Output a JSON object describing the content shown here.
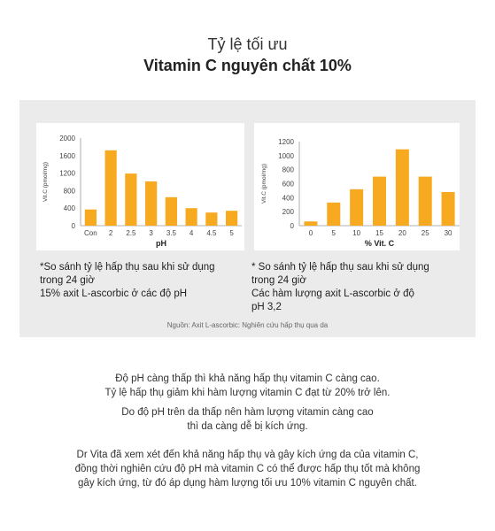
{
  "heading": {
    "line1": "Tỷ lệ tối ưu",
    "line2": "Vitamin C nguyên chất 10%"
  },
  "colors": {
    "bar": "#f7a91f",
    "panel": "#ebebeb"
  },
  "chart_data": [
    {
      "type": "bar",
      "categories": [
        "Con",
        "2",
        "2.5",
        "3",
        "3.5",
        "4",
        "4.5",
        "5"
      ],
      "values": [
        370,
        1720,
        1190,
        1010,
        650,
        400,
        300,
        340
      ],
      "xlabel": "pH",
      "ylabel": "Vit.C (pmol/mg)",
      "ylim": [
        0,
        2000
      ],
      "yticks": [
        "0",
        "400",
        "800",
        "1200",
        "1600",
        "2000"
      ],
      "grid": false
    },
    {
      "type": "bar",
      "categories": [
        "0",
        "5",
        "10",
        "15",
        "20",
        "25",
        "30"
      ],
      "values": [
        60,
        330,
        520,
        700,
        1090,
        700,
        480
      ],
      "xlabel": "% Vit. C",
      "ylabel": "Vit.C (pmol/mg)",
      "ylim": [
        0,
        1200
      ],
      "yticks": [
        "0",
        "200",
        "400",
        "600",
        "800",
        "1000",
        "1200"
      ],
      "grid": false
    }
  ],
  "notes": {
    "left": [
      "*So sánh tỷ lệ hấp thụ sau khi sử dụng",
      "trong 24 giờ",
      "15% axit L-ascorbic ở các độ pH"
    ],
    "right": [
      "* So sánh tỷ lệ hấp thụ sau khi sử dụng",
      "trong 24 giờ",
      "Các hàm lượng axit L-ascorbic ở độ",
      "pH 3,2"
    ]
  },
  "source": "Nguồn: Axit L-ascorbic: Nghiên cứu hấp thụ qua da",
  "paragraphs": [
    [
      "Độ pH càng thấp thì khả năng hấp thụ vitamin C càng cao.",
      "Tỷ lệ hấp thụ giảm khi hàm lượng vitamin C đạt từ 20% trở lên."
    ],
    [
      "Do độ pH trên da thấp nên hàm lượng vitamin càng cao",
      "thì da càng dễ bị kích ứng."
    ],
    [
      "Dr Vita đã xem xét đến khả năng hấp thụ và gây kích ứng da của vitamin C,",
      "đồng thời nghiên cứu độ pH mà vitamin C có thể được hấp thụ tốt mà không",
      "gây kích ứng, từ đó áp dụng hàm lượng tối ưu 10% vitamin C nguyên chất."
    ]
  ]
}
